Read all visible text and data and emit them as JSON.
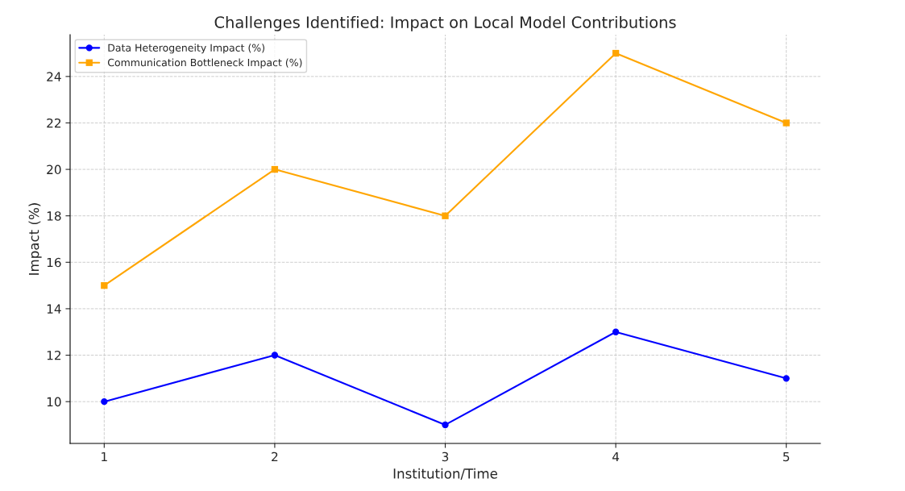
{
  "chart_data": {
    "type": "line",
    "title": "Challenges Identified: Impact on Local Model Contributions",
    "xlabel": "Institution/Time",
    "ylabel": "Impact (%)",
    "x": [
      1,
      2,
      3,
      4,
      5
    ],
    "series": [
      {
        "name": "Data Heterogeneity Impact (%)",
        "color": "#0000ff",
        "marker": "circle",
        "values": [
          10,
          12,
          9,
          13,
          11
        ]
      },
      {
        "name": "Communication Bottleneck Impact (%)",
        "color": "#ffa500",
        "marker": "square",
        "values": [
          15,
          20,
          18,
          25,
          22
        ]
      }
    ],
    "xlim": [
      0.8,
      5.2
    ],
    "xticks": [
      1,
      2,
      3,
      4,
      5
    ],
    "ylim": [
      8.2,
      25.8
    ],
    "yticks": [
      10,
      12,
      14,
      16,
      18,
      20,
      22,
      24
    ],
    "grid": true,
    "legend": "top left",
    "line_style": "solid"
  }
}
